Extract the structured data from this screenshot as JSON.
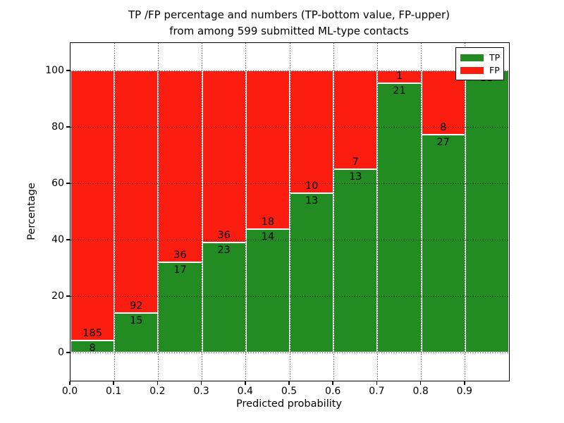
{
  "chart_data": {
    "type": "bar",
    "stacked": true,
    "normalized_to_percent": true,
    "title_line1": "TP /FP percentage and numbers (TP-bottom value, FP-upper)",
    "title_line2": "from among 599 submitted ML-type contacts",
    "xlabel": "Predicted probability",
    "ylabel": "Percentage",
    "total_contacts": 599,
    "x_tick_labels": [
      "0.0",
      "0.1",
      "0.2",
      "0.3",
      "0.4",
      "0.5",
      "0.6",
      "0.7",
      "0.8",
      "0.9"
    ],
    "y_tick_values": [
      0,
      20,
      40,
      60,
      80,
      100
    ],
    "y_tick_labels": [
      "0",
      "20",
      "40",
      "60",
      "80",
      "100"
    ],
    "xlim": [
      0.0,
      1.0
    ],
    "ylim": [
      -10,
      109.75
    ],
    "grid": "dotted-black-over-bars",
    "bin_width": 0.1,
    "bins": [
      {
        "x_start": 0.0,
        "x_end": 0.1,
        "tp": 8,
        "fp": 185
      },
      {
        "x_start": 0.1,
        "x_end": 0.2,
        "tp": 15,
        "fp": 92
      },
      {
        "x_start": 0.2,
        "x_end": 0.3,
        "tp": 17,
        "fp": 36
      },
      {
        "x_start": 0.3,
        "x_end": 0.4,
        "tp": 23,
        "fp": 36
      },
      {
        "x_start": 0.4,
        "x_end": 0.5,
        "tp": 14,
        "fp": 18
      },
      {
        "x_start": 0.5,
        "x_end": 0.6,
        "tp": 13,
        "fp": 10
      },
      {
        "x_start": 0.6,
        "x_end": 0.7,
        "tp": 13,
        "fp": 7
      },
      {
        "x_start": 0.7,
        "x_end": 0.8,
        "tp": 21,
        "fp": 1
      },
      {
        "x_start": 0.8,
        "x_end": 0.9,
        "tp": 27,
        "fp": 8
      },
      {
        "x_start": 0.9,
        "x_end": 1.0,
        "tp": 55,
        "fp": 0
      }
    ],
    "colors": {
      "tp": "#228b22",
      "fp": "#fa1d10",
      "grid": "#000000",
      "frame": "#000000",
      "background": "#ffffff"
    },
    "legend": {
      "position": "upper right",
      "entries": [
        {
          "label": "TP",
          "color": "#228b22"
        },
        {
          "label": "FP",
          "color": "#fa1d10"
        }
      ]
    }
  }
}
